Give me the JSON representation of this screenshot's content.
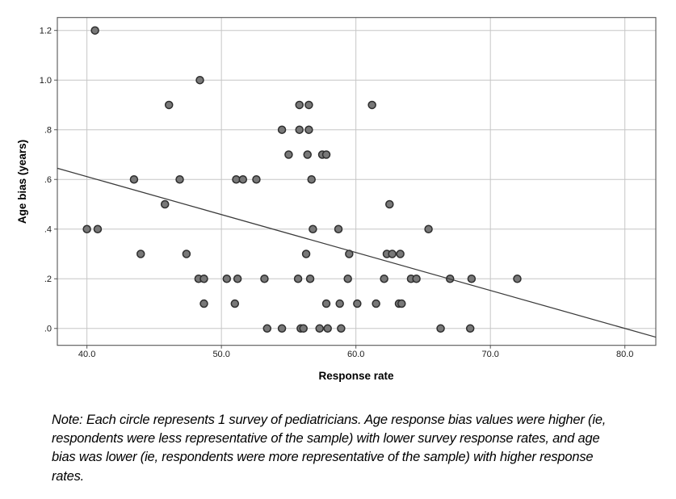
{
  "chart_data": {
    "type": "scatter",
    "title": "",
    "xlabel": "Response rate",
    "ylabel": "Age bias (years)",
    "xlim": [
      37.8,
      82.3
    ],
    "ylim": [
      -0.068,
      1.252
    ],
    "x_ticks": [
      40,
      50,
      60,
      70,
      80
    ],
    "x_tick_labels": [
      "40.0",
      "50.0",
      "60.0",
      "70.0",
      "80.0"
    ],
    "y_ticks": [
      0,
      0.2,
      0.4,
      0.6,
      0.8,
      1.0,
      1.2
    ],
    "y_tick_labels": [
      ".0",
      ".2",
      ".4",
      ".6",
      ".8",
      "1.0",
      "1.2"
    ],
    "grid": true,
    "legend": "none",
    "points": [
      [
        40.6,
        1.2
      ],
      [
        48.4,
        1.0
      ],
      [
        46.1,
        0.9
      ],
      [
        55.8,
        0.9
      ],
      [
        56.5,
        0.9
      ],
      [
        61.2,
        0.9
      ],
      [
        54.5,
        0.8
      ],
      [
        55.8,
        0.8
      ],
      [
        56.5,
        0.8
      ],
      [
        55.0,
        0.7
      ],
      [
        56.4,
        0.7
      ],
      [
        57.5,
        0.7
      ],
      [
        57.8,
        0.7
      ],
      [
        43.5,
        0.6
      ],
      [
        46.9,
        0.6
      ],
      [
        51.1,
        0.6
      ],
      [
        51.6,
        0.6
      ],
      [
        52.6,
        0.6
      ],
      [
        56.7,
        0.6
      ],
      [
        45.8,
        0.5
      ],
      [
        62.5,
        0.5
      ],
      [
        40.0,
        0.4
      ],
      [
        40.8,
        0.4
      ],
      [
        56.8,
        0.4
      ],
      [
        58.7,
        0.4
      ],
      [
        65.4,
        0.4
      ],
      [
        44.0,
        0.3
      ],
      [
        47.4,
        0.3
      ],
      [
        56.3,
        0.3
      ],
      [
        59.5,
        0.3
      ],
      [
        62.3,
        0.3
      ],
      [
        62.7,
        0.3
      ],
      [
        63.3,
        0.3
      ],
      [
        48.3,
        0.2
      ],
      [
        48.7,
        0.2
      ],
      [
        50.4,
        0.2
      ],
      [
        51.2,
        0.2
      ],
      [
        53.2,
        0.2
      ],
      [
        55.7,
        0.2
      ],
      [
        56.6,
        0.2
      ],
      [
        59.4,
        0.2
      ],
      [
        62.1,
        0.2
      ],
      [
        64.1,
        0.2
      ],
      [
        64.5,
        0.2
      ],
      [
        67.0,
        0.2
      ],
      [
        68.6,
        0.2
      ],
      [
        72.0,
        0.2
      ],
      [
        48.7,
        0.1
      ],
      [
        51.0,
        0.1
      ],
      [
        57.8,
        0.1
      ],
      [
        58.8,
        0.1
      ],
      [
        60.1,
        0.1
      ],
      [
        61.5,
        0.1
      ],
      [
        63.2,
        0.1
      ],
      [
        63.4,
        0.1
      ],
      [
        53.4,
        0.0
      ],
      [
        54.5,
        0.0
      ],
      [
        55.9,
        0.0
      ],
      [
        56.1,
        0.0
      ],
      [
        57.3,
        0.0
      ],
      [
        57.9,
        0.0
      ],
      [
        58.9,
        0.0
      ],
      [
        66.3,
        0.0
      ],
      [
        68.5,
        0.0
      ]
    ],
    "fit_line": {
      "x1": 37.8,
      "y1": 0.645,
      "x2": 82.3,
      "y2": -0.035
    },
    "colors": {
      "background": "#ffffff",
      "point_fill": "#787878",
      "point_stroke": "#2e2e2e",
      "gridline": "#c6c6c6",
      "frame": "#555555",
      "fit_line": "#3a3a3a",
      "text": "#000000"
    }
  },
  "note": {
    "lines": [
      "Note: Each circle represents 1 survey of pediatricians. Age response bias values were higher (ie,",
      "respondents were less representative of the sample) with lower survey response rates, and age",
      "bias was lower (ie, respondents were more representative of the sample) with higher response",
      "rates."
    ]
  }
}
